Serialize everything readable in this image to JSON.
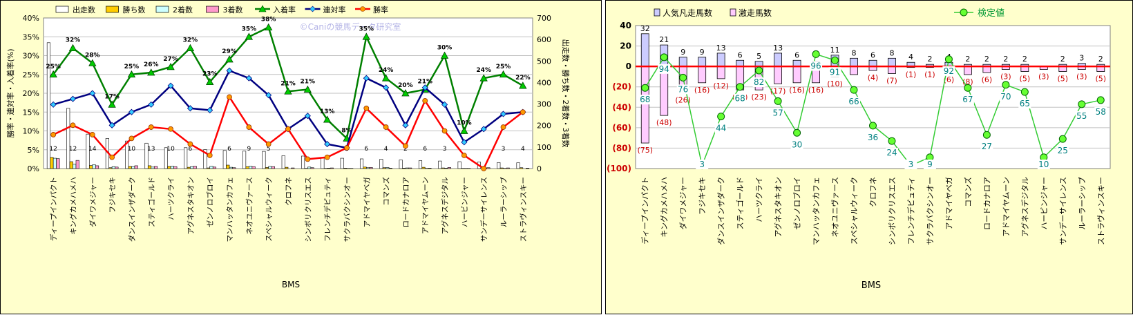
{
  "chart_data": [
    {
      "type": "bar",
      "xlabel": "BMS",
      "ylabel": "勝率・連対率・入着率(%)",
      "y2label": "出走数・勝ち数・2着数・3着数",
      "watermark": "©Caniの競馬データ研究室",
      "ylim": [
        0,
        40
      ],
      "y2lim": [
        0,
        700
      ],
      "yticks": [
        "0%",
        "5%",
        "10%",
        "15%",
        "20%",
        "25%",
        "30%",
        "35%",
        "40%"
      ],
      "y2ticks": [
        "0",
        "100",
        "200",
        "300",
        "400",
        "500",
        "600",
        "700"
      ],
      "legend": [
        "出走数",
        "勝ち数",
        "2着数",
        "3着数",
        "入着率",
        "連対率",
        "勝率"
      ],
      "grid": true,
      "categories": [
        "ディープインパクト",
        "キングカメハメハ",
        "ダイワメジャー",
        "フジキセキ",
        "ダンスインザダーク",
        "スティゴールド",
        "ハーツクライ",
        "アグネスタキオン",
        "ゼンノロブロイ",
        "マンハッタンカフェ",
        "ネオユニヴァース",
        "スペシャルウィーク",
        "クロフネ",
        "シンボリクリスエス",
        "フレンチデピュティ",
        "サクラバクシンオー",
        "アドマイヤベガ",
        "コマンズ",
        "ロードカナロア",
        "アドマイヤムーン",
        "アグネスデジタル",
        "ハービンジャー",
        "サンデーサイレンス",
        "ルーラーシップ",
        "ストラヴィンスキー"
      ],
      "series": [
        {
          "name": "出走数",
          "axis": "right",
          "color": "#ffffff",
          "values": [
            585,
            280,
            160,
            140,
            128,
            118,
            97,
            97,
            88,
            84,
            81,
            80,
            60,
            58,
            50,
            48,
            45,
            43,
            40,
            37,
            35,
            32,
            30,
            28,
            27
          ],
          "labels": [
            "12",
            "12",
            "14",
            "",
            "10",
            "13",
            "10",
            "6",
            "",
            "6",
            "9",
            "5",
            "",
            "",
            "",
            "2",
            "6",
            "4",
            "2",
            "6",
            "3",
            "",
            "",
            "3",
            "4"
          ]
        },
        {
          "name": "勝ち数",
          "axis": "right",
          "color": "#ffcc00",
          "values": [
            52,
            32,
            14,
            4,
            10,
            13,
            10,
            6,
            3,
            16,
            9,
            5,
            6,
            1,
            1,
            2,
            7,
            4,
            2,
            6,
            3,
            1,
            0,
            3,
            4
          ]
        },
        {
          "name": "2着数",
          "axis": "right",
          "color": "#ccffff",
          "values": [
            48,
            20,
            18,
            9,
            9,
            7,
            11,
            9,
            11,
            6,
            11,
            10,
            0,
            7,
            2,
            1,
            4,
            5,
            3,
            1,
            2,
            1,
            3,
            1,
            0
          ]
        },
        {
          "name": "3着数",
          "axis": "right",
          "color": "#ff99cc",
          "values": [
            46,
            38,
            13,
            7,
            13,
            10,
            9,
            11,
            7,
            4,
            9,
            9,
            3,
            4,
            3,
            1,
            5,
            2,
            3,
            2,
            5,
            1,
            4,
            3,
            2
          ]
        },
        {
          "name": "入着率",
          "axis": "left",
          "color": "#008000",
          "values": [
            25,
            32,
            28,
            17,
            25,
            25.5,
            27,
            32,
            23,
            29,
            35,
            37.5,
            20.5,
            21,
            13,
            8,
            35,
            24,
            20,
            21,
            30,
            10,
            24,
            25,
            22
          ],
          "labels": [
            "25%",
            "32%",
            "28%",
            "17%",
            "25%",
            "26%",
            "27%",
            "32%",
            "23%",
            "29%",
            "35%",
            "38%",
            "21%",
            "21%",
            "13%",
            "8%",
            "35%",
            "24%",
            "20%",
            "21%",
            "30%",
            "10%",
            "24%",
            "25%",
            "22%"
          ]
        },
        {
          "name": "連対率",
          "axis": "left",
          "color": "#000080",
          "values": [
            17,
            18.5,
            20,
            11.5,
            15,
            17,
            22,
            16,
            15.5,
            26,
            24,
            19.5,
            10.5,
            14,
            6.5,
            5.5,
            24,
            21.5,
            11.5,
            21.5,
            17,
            7,
            10.5,
            14.5,
            15
          ]
        },
        {
          "name": "勝率",
          "axis": "left",
          "color": "#ff0000",
          "values": [
            9,
            11.5,
            9,
            3,
            8,
            11,
            10.5,
            6.5,
            3.5,
            19,
            11,
            6.5,
            10.5,
            2.5,
            3,
            5.5,
            16,
            11,
            6,
            18,
            10,
            3.5,
            0,
            11,
            15
          ]
        }
      ]
    },
    {
      "type": "bar",
      "xlabel": "BMS",
      "ylim": [
        -100,
        40
      ],
      "yticks": [
        "40",
        "20",
        "0",
        "(20)",
        "(40)",
        "(60)",
        "(80)",
        "(100)"
      ],
      "legend": [
        "人気凡走馬数",
        "激走馬数",
        "検定値"
      ],
      "categories": [
        "ディープインパクト",
        "キングカメハメハ",
        "ダイワメジャー",
        "フジキセキ",
        "ダンスインザダーク",
        "スティゴールド",
        "ハーツクライ",
        "アグネスタキオン",
        "ゼンノロブロイ",
        "マンハッタンカフェ",
        "ネオユニヴァース",
        "スペシャルウィーク",
        "クロフネ",
        "シンボリクリスエス",
        "フレンチデピュティ",
        "サクラバクシンオー",
        "アドマイヤベガ",
        "コマンズ",
        "ロードカナロア",
        "アドマイヤムーン",
        "アグネスデジタル",
        "ハービンジャー",
        "サンデーサイレンス",
        "ルーラーシップ",
        "ストラヴィンスキー"
      ],
      "series": [
        {
          "name": "激走馬数",
          "color": "#ccccff",
          "values": [
            32,
            21,
            9,
            9,
            13,
            6,
            5,
            13,
            6,
            5,
            11,
            8,
            6,
            8,
            4,
            2,
            4,
            2,
            2,
            2,
            2,
            0,
            2,
            3,
            2
          ],
          "labels": [
            "32",
            "21",
            "9",
            "9",
            "13",
            "6",
            "5",
            "13",
            "6",
            "",
            "11",
            "8",
            "6",
            "8",
            "4",
            "2",
            "4",
            "2",
            "2",
            "2",
            "2",
            "",
            "2",
            "3",
            "2"
          ]
        },
        {
          "name": "人気凡走馬数",
          "color": "#ffccff",
          "values": [
            -75,
            -48,
            -26,
            -16,
            -12,
            -23,
            -23,
            -17,
            -16,
            -16,
            -10,
            -8,
            -4,
            -7,
            -1,
            -1,
            -6,
            -8,
            -6,
            -3,
            -5,
            -3,
            -5,
            -3,
            -5
          ],
          "labels": [
            "(75)",
            "(48)",
            "(26)",
            "(16)",
            "(12)",
            "(23)",
            "(23)",
            "(17)",
            "(16)",
            "(16)",
            "(10)",
            "",
            "(4)",
            "(7)",
            "(1)",
            "(1)",
            "(6)",
            "(8)",
            "(6)",
            "(3)",
            "(5)",
            "(3)",
            "(5)",
            "(3)",
            "(5)"
          ]
        },
        {
          "name": "検定値",
          "color": "#33cc33",
          "values": [
            -21,
            9,
            -11,
            -97,
            -49,
            -20,
            -4,
            -34,
            -65,
            12,
            6,
            -23,
            -58,
            -73,
            -97,
            -89,
            7,
            -21,
            -67,
            -18,
            -25,
            -89,
            -71,
            -37,
            -33
          ],
          "labels": [
            "68",
            "94",
            "76",
            "3",
            "44",
            "68",
            "82",
            "57",
            "30",
            "96",
            "91",
            "66",
            "36",
            "24",
            "3",
            "9",
            "92",
            "67",
            "27",
            "70",
            "65",
            "10",
            "25",
            "55",
            "58"
          ]
        }
      ]
    }
  ]
}
